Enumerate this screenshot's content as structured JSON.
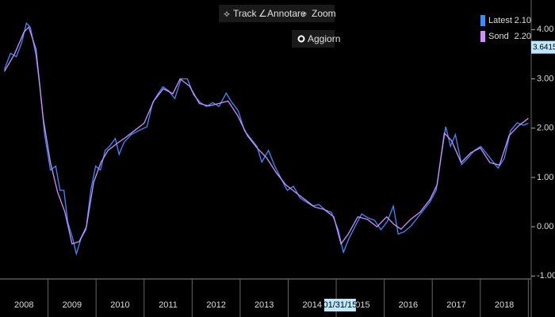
{
  "toolbar": {
    "buttons": [
      "Track",
      "Annotare",
      "Zoom"
    ],
    "refresh": "Aggiorn"
  },
  "chart_data": {
    "type": "line",
    "series": [
      {
        "name": "Latest",
        "current_label": "2.10",
        "color": "#3a8cff",
        "x": [
          2008.09,
          2008.22,
          2008.34,
          2008.45,
          2008.55,
          2008.63,
          2008.75,
          2008.83,
          2008.93,
          2009.05,
          2009.16,
          2009.25,
          2009.33,
          2009.41,
          2009.51,
          2009.59,
          2009.69,
          2009.79,
          2009.89,
          2009.99,
          2010.09,
          2010.19,
          2010.28,
          2010.4,
          2010.48,
          2010.58,
          2010.73,
          2010.89,
          2011.06,
          2011.18,
          2011.28,
          2011.39,
          2011.51,
          2011.64,
          2011.77,
          2011.9,
          2012.03,
          2012.17,
          2012.3,
          2012.43,
          2012.56,
          2012.71,
          2012.83,
          2012.96,
          2013.09,
          2013.22,
          2013.35,
          2013.45,
          2013.59,
          2013.72,
          2013.85,
          2013.98,
          2014.11,
          2014.25,
          2014.38,
          2014.51,
          2014.64,
          2014.77,
          2014.9,
          2015.04,
          2015.15,
          2015.27,
          2015.4,
          2015.53,
          2015.66,
          2015.8,
          2015.93,
          2016.06,
          2016.19,
          2016.29,
          2016.42,
          2016.56,
          2016.69,
          2016.82,
          2016.95,
          2017.08,
          2017.18,
          2017.28,
          2017.38,
          2017.48,
          2017.61,
          2017.74,
          2017.88,
          2018.01,
          2018.14,
          2018.24,
          2018.37,
          2018.5,
          2018.63,
          2018.77,
          2018.9,
          2019.0
        ],
        "values": [
          3.19,
          3.52,
          3.45,
          3.73,
          4.13,
          4.05,
          3.48,
          2.84,
          1.87,
          1.15,
          1.23,
          0.74,
          0.74,
          0.1,
          -0.23,
          -0.55,
          -0.23,
          -0.06,
          0.74,
          1.23,
          1.15,
          1.55,
          1.63,
          1.79,
          1.47,
          1.71,
          1.87,
          1.95,
          2.03,
          2.52,
          2.68,
          2.84,
          2.76,
          2.6,
          3.0,
          3.0,
          2.68,
          2.52,
          2.44,
          2.52,
          2.44,
          2.71,
          2.52,
          2.35,
          1.95,
          1.79,
          1.63,
          1.31,
          1.55,
          1.23,
          0.98,
          0.74,
          0.82,
          0.58,
          0.5,
          0.42,
          0.45,
          0.34,
          0.29,
          -0.06,
          -0.52,
          -0.23,
          0.02,
          0.26,
          0.18,
          0.13,
          -0.06,
          0.1,
          0.42,
          -0.15,
          -0.1,
          0.02,
          0.18,
          0.34,
          0.5,
          0.74,
          1.39,
          2.03,
          1.63,
          1.87,
          1.26,
          1.39,
          1.55,
          1.63,
          1.47,
          1.35,
          1.19,
          1.39,
          1.95,
          2.11,
          2.06,
          2.1
        ]
      },
      {
        "name": "Sond",
        "current_label": "2.20",
        "color": "#d58cff",
        "x": [
          2008.09,
          2008.3,
          2008.5,
          2008.6,
          2008.75,
          2008.9,
          2009.05,
          2009.2,
          2009.35,
          2009.5,
          2009.65,
          2009.8,
          2009.95,
          2010.1,
          2010.25,
          2010.45,
          2010.6,
          2010.8,
          2011.0,
          2011.2,
          2011.4,
          2011.6,
          2011.75,
          2011.95,
          2012.15,
          2012.35,
          2012.55,
          2012.75,
          2012.95,
          2013.15,
          2013.35,
          2013.55,
          2013.75,
          2013.95,
          2014.15,
          2014.35,
          2014.55,
          2014.75,
          2014.95,
          2015.1,
          2015.25,
          2015.45,
          2015.65,
          2015.85,
          2016.05,
          2016.2,
          2016.35,
          2016.55,
          2016.75,
          2016.95,
          2017.1,
          2017.25,
          2017.4,
          2017.6,
          2017.8,
          2018.0,
          2018.2,
          2018.4,
          2018.6,
          2018.8,
          2019.0
        ],
        "values": [
          3.15,
          3.5,
          3.95,
          4.05,
          3.6,
          2.2,
          1.3,
          0.7,
          0.3,
          -0.35,
          -0.3,
          0.0,
          0.9,
          1.3,
          1.55,
          1.7,
          1.8,
          1.95,
          2.1,
          2.55,
          2.8,
          2.7,
          3.0,
          2.85,
          2.5,
          2.45,
          2.5,
          2.55,
          2.25,
          1.85,
          1.6,
          1.4,
          1.1,
          0.85,
          0.7,
          0.55,
          0.4,
          0.35,
          0.2,
          -0.35,
          -0.15,
          0.2,
          0.15,
          0.0,
          0.2,
          0.05,
          -0.05,
          0.15,
          0.3,
          0.55,
          0.85,
          1.9,
          1.75,
          1.3,
          1.5,
          1.6,
          1.3,
          1.25,
          1.85,
          2.05,
          2.2
        ]
      }
    ],
    "xlim": [
      2008,
      2019.06
    ],
    "xticks": [
      {
        "value": 2008.5,
        "label": "2008"
      },
      {
        "value": 2009.5,
        "label": "2009"
      },
      {
        "value": 2010.5,
        "label": "2010"
      },
      {
        "value": 2011.5,
        "label": "2011"
      },
      {
        "value": 2012.5,
        "label": "2012"
      },
      {
        "value": 2013.5,
        "label": "2013"
      },
      {
        "value": 2014.5,
        "label": "2014"
      },
      {
        "value": 2015.5,
        "label": "2015"
      },
      {
        "value": 2016.5,
        "label": "2016"
      },
      {
        "value": 2017.5,
        "label": "2017"
      },
      {
        "value": 2018.5,
        "label": "2018"
      }
    ],
    "ylim": [
      -1.06,
      4.52
    ],
    "yticks": [
      {
        "value": -1,
        "label": "-1.00"
      },
      {
        "value": 0,
        "label": "0.00"
      },
      {
        "value": 1,
        "label": "1.00"
      },
      {
        "value": 2,
        "label": "2.00"
      },
      {
        "value": 3,
        "label": "3.00"
      },
      {
        "value": 4,
        "label": "4.00"
      }
    ],
    "cursor": {
      "x": 2015.08,
      "x_label": "01/31/15",
      "y": 3.6415
    }
  }
}
